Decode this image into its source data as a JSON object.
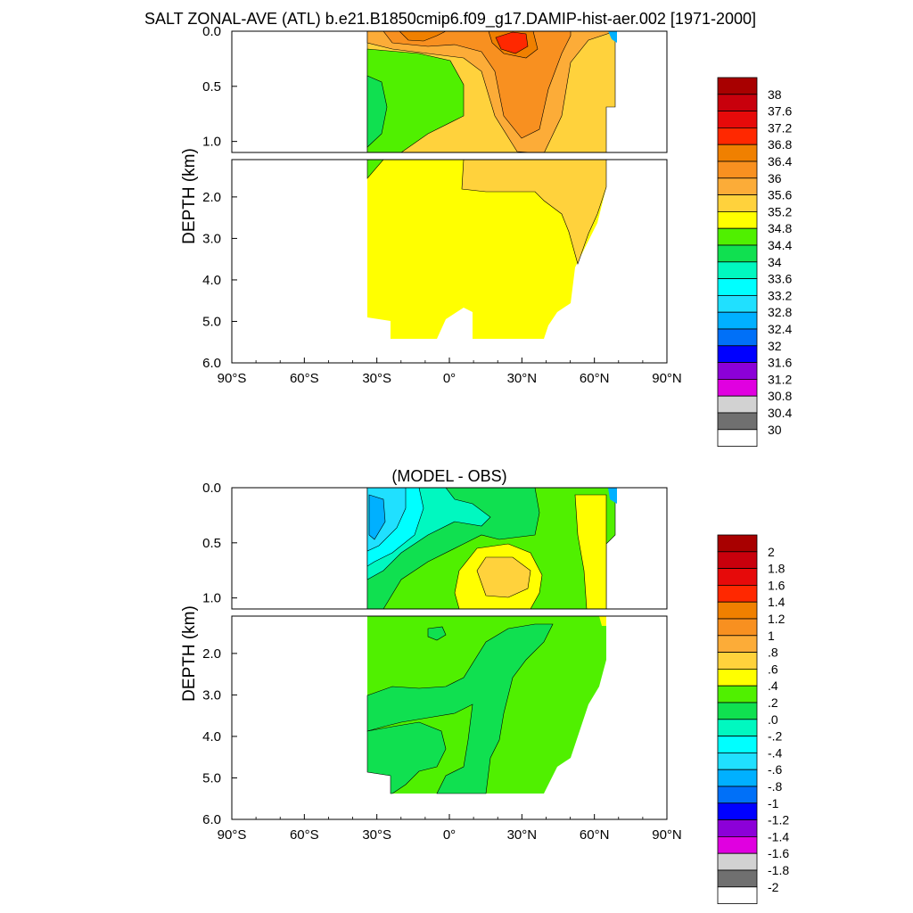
{
  "chart_data": [
    {
      "type": "contour",
      "title": "SALT ZONAL-AVE (ATL) b.e21.B1850cmip6.f09_g17.DAMIP-hist-aer.002 [1971-2000]",
      "ylabel": "DEPTH (km)",
      "xlabel": "",
      "x_ticks": [
        "90°S",
        "60°S",
        "30°S",
        "0°",
        "30°N",
        "60°N",
        "90°N"
      ],
      "x_tick_values": [
        -90,
        -60,
        -30,
        0,
        30,
        60,
        90
      ],
      "y_upper_ticks": [
        "0.0",
        "0.5",
        "1.0"
      ],
      "y_upper_values": [
        0.0,
        0.5,
        1.0
      ],
      "y_lower_ticks": [
        "2.0",
        "3.0",
        "4.0",
        "5.0",
        "6.0"
      ],
      "y_lower_values": [
        2.0,
        3.0,
        4.0,
        5.0,
        6.0
      ],
      "xlim": [
        -90,
        90
      ],
      "ylim_upper": [
        0,
        1.1
      ],
      "ylim_lower": [
        1.1,
        6.0
      ],
      "colorbar": {
        "labels": [
          "38",
          "37.6",
          "37.2",
          "36.8",
          "36.4",
          "36",
          "35.6",
          "35.2",
          "34.8",
          "34.4",
          "34",
          "33.6",
          "33.2",
          "32.8",
          "32.4",
          "32",
          "31.6",
          "31.2",
          "30.8",
          "30.4",
          "30"
        ],
        "colors": [
          "#a80000",
          "#c8000c",
          "#e60a0a",
          "#ff2800",
          "#f08000",
          "#f89020",
          "#fcac38",
          "#ffd23c",
          "#ffff00",
          "#50f000",
          "#10e050",
          "#00f8c0",
          "#00ffff",
          "#20e0ff",
          "#00b0ff",
          "#0070f8",
          "#0000ff",
          "#8c00d8",
          "#e000e0",
          "#d2d2d2",
          "#707070",
          "#ffffff"
        ]
      },
      "values": {
        "surface_max": 37.2,
        "surface_max_lat": 24,
        "deep_mean": 34.95,
        "southern_min_upper": 34.1
      }
    },
    {
      "type": "contour",
      "title": "(MODEL - OBS)",
      "ylabel": "DEPTH (km)",
      "xlabel": "",
      "x_ticks": [
        "90°S",
        "60°S",
        "30°S",
        "0°",
        "30°N",
        "60°N",
        "90°N"
      ],
      "x_tick_values": [
        -90,
        -60,
        -30,
        0,
        30,
        60,
        90
      ],
      "y_upper_ticks": [
        "0.0",
        "0.5",
        "1.0"
      ],
      "y_upper_values": [
        0.0,
        0.5,
        1.0
      ],
      "y_lower_ticks": [
        "2.0",
        "3.0",
        "4.0",
        "5.0",
        "6.0"
      ],
      "y_lower_values": [
        2.0,
        3.0,
        4.0,
        5.0,
        6.0
      ],
      "xlim": [
        -90,
        90
      ],
      "ylim_upper": [
        0,
        1.1
      ],
      "ylim_lower": [
        1.1,
        6.0
      ],
      "colorbar": {
        "labels": [
          "2",
          "1.8",
          "1.6",
          "1.4",
          "1.2",
          "1",
          ".8",
          ".6",
          ".4",
          ".2",
          ".0",
          "-.2",
          "-.4",
          "-.6",
          "-.8",
          "-1",
          "-1.2",
          "-1.4",
          "-1.6",
          "-1.8",
          "-2"
        ],
        "colors": [
          "#a80000",
          "#c8000c",
          "#e60a0a",
          "#ff2800",
          "#f08000",
          "#f89020",
          "#fcac38",
          "#ffd23c",
          "#ffff00",
          "#50f000",
          "#10e050",
          "#00f8c0",
          "#00ffff",
          "#20e0ff",
          "#00b0ff",
          "#0070f8",
          "#0000ff",
          "#8c00d8",
          "#e000e0",
          "#d2d2d2",
          "#707070",
          "#ffffff"
        ]
      },
      "values": {
        "surface_min": -1.0,
        "surface_min_lat": -30,
        "subsurface_max": 0.8,
        "subsurface_max_lat": 24,
        "deep_mean": 0.25
      }
    }
  ]
}
